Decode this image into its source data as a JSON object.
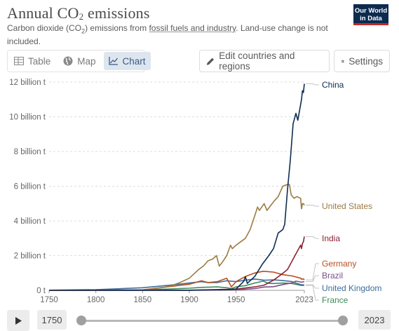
{
  "header": {
    "title_main": "Annual CO",
    "title_sub": "2",
    "title_end": " emissions",
    "subtitle_pre": "Carbon dioxide (CO",
    "subtitle_sub": "2",
    "subtitle_mid": ") emissions from ",
    "subtitle_link": "fossil fuels and industry",
    "subtitle_post": ". Land-use change is not included.",
    "logo_line1": "Our World",
    "logo_line2": "in Data"
  },
  "tabs": [
    {
      "label": "Table",
      "icon": "table-icon"
    },
    {
      "label": "Map",
      "icon": "globe-icon"
    },
    {
      "label": "Chart",
      "icon": "line-chart-icon",
      "active": true
    }
  ],
  "buttons": {
    "edit_label": "Edit countries and regions",
    "settings_label": "Settings"
  },
  "timeline": {
    "start_year": "1750",
    "end_year": "2023"
  },
  "chart_data": {
    "type": "line",
    "title": "Annual CO₂ emissions",
    "ylim": [
      0,
      12000000000
    ],
    "xlim": [
      1750,
      2023
    ],
    "grid": true,
    "y_ticks": [
      {
        "value": 0,
        "label": "0 t"
      },
      {
        "value": 2000000000,
        "label": "2 billion t"
      },
      {
        "value": 4000000000,
        "label": "4 billion t"
      },
      {
        "value": 6000000000,
        "label": "6 billion t"
      },
      {
        "value": 8000000000,
        "label": "8 billion t"
      },
      {
        "value": 10000000000,
        "label": "10 billion t"
      },
      {
        "value": 12000000000,
        "label": "12 billion t"
      }
    ],
    "x_ticks": [
      "1750",
      "1800",
      "1850",
      "1900",
      "1950",
      "2023"
    ],
    "legend_placement": "right",
    "series": [
      {
        "name": "China",
        "color": "#0f2d52",
        "x": [
          1750,
          1900,
          1920,
          1940,
          1950,
          1958,
          1960,
          1962,
          1970,
          1978,
          1985,
          1990,
          1995,
          2000,
          2002,
          2005,
          2008,
          2011,
          2014,
          2016,
          2019,
          2020,
          2021,
          2022,
          2023
        ],
        "y": [
          0,
          0.01,
          0.02,
          0.04,
          0.08,
          0.5,
          0.78,
          0.4,
          0.8,
          1.5,
          2.0,
          2.4,
          3.3,
          3.5,
          3.8,
          5.8,
          7.5,
          9.6,
          10.2,
          9.8,
          10.7,
          11.0,
          11.5,
          11.4,
          11.9
        ]
      },
      {
        "name": "United States",
        "color": "#9c7a44",
        "x": [
          1750,
          1800,
          1850,
          1870,
          1880,
          1890,
          1900,
          1910,
          1915,
          1920,
          1925,
          1929,
          1932,
          1935,
          1940,
          1944,
          1946,
          1950,
          1955,
          1960,
          1965,
          1970,
          1973,
          1975,
          1980,
          1983,
          1990,
          1995,
          2000,
          2005,
          2007,
          2009,
          2012,
          2015,
          2019,
          2020,
          2021,
          2022,
          2023
        ],
        "y": [
          0,
          0.001,
          0.02,
          0.15,
          0.25,
          0.45,
          0.7,
          1.2,
          1.4,
          1.7,
          1.8,
          2.0,
          1.4,
          1.6,
          2.0,
          2.6,
          2.4,
          2.6,
          2.8,
          3.0,
          3.5,
          4.3,
          4.8,
          4.6,
          5.0,
          4.6,
          5.1,
          5.4,
          6.0,
          6.1,
          6.1,
          5.5,
          5.3,
          5.4,
          5.3,
          4.7,
          5.0,
          5.0,
          4.9
        ]
      },
      {
        "name": "India",
        "color": "#8b2333",
        "x": [
          1750,
          1900,
          1950,
          1970,
          1980,
          1990,
          2000,
          2005,
          2010,
          2015,
          2019,
          2020,
          2021,
          2022,
          2023
        ],
        "y": [
          0,
          0.01,
          0.07,
          0.2,
          0.3,
          0.58,
          0.98,
          1.2,
          1.7,
          2.2,
          2.6,
          2.4,
          2.7,
          2.8,
          3.1
        ]
      },
      {
        "name": "Germany",
        "color": "#b84e1c",
        "x": [
          1750,
          1850,
          1900,
          1913,
          1920,
          1930,
          1940,
          1945,
          1950,
          1960,
          1970,
          1979,
          1990,
          2000,
          2010,
          2019,
          2020,
          2022,
          2023
        ],
        "y": [
          0,
          0.03,
          0.35,
          0.55,
          0.45,
          0.5,
          0.7,
          0.2,
          0.5,
          0.8,
          1.0,
          1.1,
          1.05,
          0.9,
          0.83,
          0.7,
          0.64,
          0.66,
          0.6
        ]
      },
      {
        "name": "Brazil",
        "color": "#7a4e8c",
        "x": [
          1750,
          1900,
          1950,
          1970,
          1980,
          1990,
          2000,
          2010,
          2014,
          2020,
          2023
        ],
        "y": [
          0,
          0.002,
          0.02,
          0.1,
          0.19,
          0.21,
          0.33,
          0.43,
          0.53,
          0.47,
          0.5
        ]
      },
      {
        "name": "United Kingdom",
        "color": "#3d6e9e",
        "x": [
          1750,
          1800,
          1850,
          1880,
          1900,
          1913,
          1920,
          1930,
          1940,
          1950,
          1960,
          1970,
          1980,
          1990,
          2000,
          2010,
          2015,
          2020,
          2023
        ],
        "y": [
          0.009,
          0.04,
          0.15,
          0.3,
          0.42,
          0.5,
          0.45,
          0.45,
          0.55,
          0.5,
          0.58,
          0.65,
          0.58,
          0.6,
          0.56,
          0.5,
          0.4,
          0.32,
          0.31
        ]
      },
      {
        "name": "France",
        "color": "#3e8a5a",
        "x": [
          1750,
          1850,
          1900,
          1913,
          1930,
          1940,
          1945,
          1950,
          1960,
          1970,
          1979,
          1985,
          1990,
          2000,
          2010,
          2020,
          2023
        ],
        "y": [
          0,
          0.02,
          0.12,
          0.17,
          0.2,
          0.15,
          0.1,
          0.2,
          0.27,
          0.42,
          0.53,
          0.4,
          0.39,
          0.42,
          0.39,
          0.28,
          0.29
        ]
      }
    ],
    "y_unit_scale": "billion t"
  }
}
